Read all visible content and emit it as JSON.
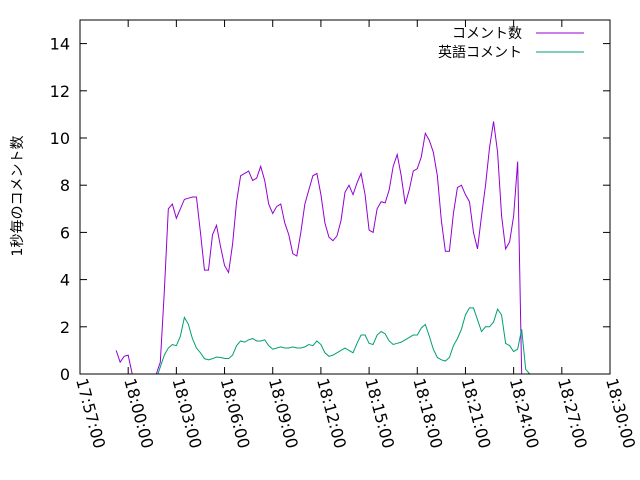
{
  "chart_data": {
    "type": "line",
    "title": "",
    "xlabel": "",
    "ylabel": "1秒毎のコメント数",
    "ylim": [
      0,
      15
    ],
    "yticks": [
      0,
      2,
      4,
      6,
      8,
      10,
      12,
      14
    ],
    "xlim": [
      "17:57:00",
      "18:30:00"
    ],
    "xticks": [
      "17:57:00",
      "18:00:00",
      "18:03:00",
      "18:06:00",
      "18:09:00",
      "18:12:00",
      "18:15:00",
      "18:18:00",
      "18:21:00",
      "18:24:00",
      "18:27:00",
      "18:30:00"
    ],
    "legend_position": "top-right",
    "grid": false,
    "series": [
      {
        "name": "コメント数",
        "color": "#9400d3",
        "points": [
          [
            "17:59:15",
            1.0
          ],
          [
            "17:59:30",
            0.5
          ],
          [
            "17:59:45",
            0.75
          ],
          [
            "18:00:00",
            0.8
          ],
          [
            "18:00:15",
            0.0
          ],
          [
            "18:00:30",
            -0.3
          ],
          [
            "18:01:30",
            -0.3
          ],
          [
            "18:01:45",
            0.0
          ],
          [
            "18:02:00",
            0.5
          ],
          [
            "18:02:15",
            3.5
          ],
          [
            "18:02:30",
            7.0
          ],
          [
            "18:02:45",
            7.2
          ],
          [
            "18:03:00",
            6.6
          ],
          [
            "18:03:15",
            7.0
          ],
          [
            "18:03:30",
            7.4
          ],
          [
            "18:03:45",
            7.45
          ],
          [
            "18:04:00",
            7.5
          ],
          [
            "18:04:15",
            7.5
          ],
          [
            "18:04:30",
            6.0
          ],
          [
            "18:04:45",
            4.4
          ],
          [
            "18:05:00",
            4.4
          ],
          [
            "18:05:15",
            5.9
          ],
          [
            "18:05:30",
            6.3
          ],
          [
            "18:05:45",
            5.4
          ],
          [
            "18:06:00",
            4.6
          ],
          [
            "18:06:15",
            4.3
          ],
          [
            "18:06:30",
            5.5
          ],
          [
            "18:06:45",
            7.3
          ],
          [
            "18:07:00",
            8.4
          ],
          [
            "18:07:15",
            8.5
          ],
          [
            "18:07:30",
            8.6
          ],
          [
            "18:07:45",
            8.2
          ],
          [
            "18:08:00",
            8.3
          ],
          [
            "18:08:15",
            8.8
          ],
          [
            "18:08:30",
            8.2
          ],
          [
            "18:08:45",
            7.2
          ],
          [
            "18:09:00",
            6.8
          ],
          [
            "18:09:15",
            7.1
          ],
          [
            "18:09:30",
            7.2
          ],
          [
            "18:09:45",
            6.4
          ],
          [
            "18:10:00",
            5.9
          ],
          [
            "18:10:15",
            5.1
          ],
          [
            "18:10:30",
            5.0
          ],
          [
            "18:10:45",
            6.0
          ],
          [
            "18:11:00",
            7.2
          ],
          [
            "18:11:15",
            7.8
          ],
          [
            "18:11:30",
            8.4
          ],
          [
            "18:11:45",
            8.5
          ],
          [
            "18:12:00",
            7.6
          ],
          [
            "18:12:15",
            6.4
          ],
          [
            "18:12:30",
            5.8
          ],
          [
            "18:12:45",
            5.65
          ],
          [
            "18:13:00",
            5.85
          ],
          [
            "18:13:15",
            6.5
          ],
          [
            "18:13:30",
            7.7
          ],
          [
            "18:13:45",
            8.0
          ],
          [
            "18:14:00",
            7.6
          ],
          [
            "18:14:15",
            8.1
          ],
          [
            "18:14:30",
            8.5
          ],
          [
            "18:14:45",
            7.6
          ],
          [
            "18:15:00",
            6.1
          ],
          [
            "18:15:15",
            6.0
          ],
          [
            "18:15:30",
            7.0
          ],
          [
            "18:15:45",
            7.3
          ],
          [
            "18:16:00",
            7.25
          ],
          [
            "18:16:15",
            7.8
          ],
          [
            "18:16:30",
            8.8
          ],
          [
            "18:16:45",
            9.3
          ],
          [
            "18:17:00",
            8.4
          ],
          [
            "18:17:15",
            7.2
          ],
          [
            "18:17:30",
            7.8
          ],
          [
            "18:17:45",
            8.6
          ],
          [
            "18:18:00",
            8.7
          ],
          [
            "18:18:15",
            9.2
          ],
          [
            "18:18:30",
            10.2
          ],
          [
            "18:18:45",
            9.9
          ],
          [
            "18:19:00",
            9.4
          ],
          [
            "18:19:15",
            8.4
          ],
          [
            "18:19:30",
            6.5
          ],
          [
            "18:19:45",
            5.2
          ],
          [
            "18:20:00",
            5.2
          ],
          [
            "18:20:15",
            6.8
          ],
          [
            "18:20:30",
            7.9
          ],
          [
            "18:20:45",
            8.0
          ],
          [
            "18:21:00",
            7.6
          ],
          [
            "18:21:15",
            7.3
          ],
          [
            "18:21:30",
            6.0
          ],
          [
            "18:21:45",
            5.3
          ],
          [
            "18:22:00",
            6.7
          ],
          [
            "18:22:15",
            8.0
          ],
          [
            "18:22:30",
            9.6
          ],
          [
            "18:22:45",
            10.7
          ],
          [
            "18:23:00",
            9.4
          ],
          [
            "18:23:15",
            6.7
          ],
          [
            "18:23:30",
            5.3
          ],
          [
            "18:23:45",
            5.6
          ],
          [
            "18:24:00",
            6.7
          ],
          [
            "18:24:15",
            9.0
          ],
          [
            "18:24:30",
            0.0
          ]
        ]
      },
      {
        "name": "英語コメント",
        "color": "#009e73",
        "points": [
          [
            "18:01:45",
            -0.2
          ],
          [
            "18:02:00",
            0.3
          ],
          [
            "18:02:15",
            0.8
          ],
          [
            "18:02:30",
            1.1
          ],
          [
            "18:02:45",
            1.25
          ],
          [
            "18:03:00",
            1.2
          ],
          [
            "18:03:15",
            1.6
          ],
          [
            "18:03:30",
            2.4
          ],
          [
            "18:03:45",
            2.1
          ],
          [
            "18:04:00",
            1.5
          ],
          [
            "18:04:15",
            1.1
          ],
          [
            "18:04:30",
            0.9
          ],
          [
            "18:04:45",
            0.65
          ],
          [
            "18:05:00",
            0.6
          ],
          [
            "18:05:15",
            0.65
          ],
          [
            "18:05:30",
            0.72
          ],
          [
            "18:05:45",
            0.7
          ],
          [
            "18:06:00",
            0.66
          ],
          [
            "18:06:15",
            0.65
          ],
          [
            "18:06:30",
            0.8
          ],
          [
            "18:06:45",
            1.2
          ],
          [
            "18:07:00",
            1.4
          ],
          [
            "18:07:15",
            1.35
          ],
          [
            "18:07:30",
            1.45
          ],
          [
            "18:07:45",
            1.5
          ],
          [
            "18:08:00",
            1.4
          ],
          [
            "18:08:15",
            1.4
          ],
          [
            "18:08:30",
            1.45
          ],
          [
            "18:08:45",
            1.2
          ],
          [
            "18:09:00",
            1.05
          ],
          [
            "18:09:15",
            1.1
          ],
          [
            "18:09:30",
            1.15
          ],
          [
            "18:09:45",
            1.1
          ],
          [
            "18:10:00",
            1.1
          ],
          [
            "18:10:15",
            1.15
          ],
          [
            "18:10:30",
            1.1
          ],
          [
            "18:10:45",
            1.1
          ],
          [
            "18:11:00",
            1.15
          ],
          [
            "18:11:15",
            1.25
          ],
          [
            "18:11:30",
            1.2
          ],
          [
            "18:11:45",
            1.4
          ],
          [
            "18:12:00",
            1.25
          ],
          [
            "18:12:15",
            0.9
          ],
          [
            "18:12:30",
            0.75
          ],
          [
            "18:12:45",
            0.8
          ],
          [
            "18:13:00",
            0.9
          ],
          [
            "18:13:15",
            1.0
          ],
          [
            "18:13:30",
            1.1
          ],
          [
            "18:13:45",
            1.0
          ],
          [
            "18:14:00",
            0.9
          ],
          [
            "18:14:15",
            1.3
          ],
          [
            "18:14:30",
            1.65
          ],
          [
            "18:14:45",
            1.65
          ],
          [
            "18:15:00",
            1.3
          ],
          [
            "18:15:15",
            1.25
          ],
          [
            "18:15:30",
            1.65
          ],
          [
            "18:15:45",
            1.8
          ],
          [
            "18:16:00",
            1.7
          ],
          [
            "18:16:15",
            1.4
          ],
          [
            "18:16:30",
            1.25
          ],
          [
            "18:16:45",
            1.3
          ],
          [
            "18:17:00",
            1.35
          ],
          [
            "18:17:15",
            1.45
          ],
          [
            "18:17:30",
            1.55
          ],
          [
            "18:17:45",
            1.65
          ],
          [
            "18:18:00",
            1.65
          ],
          [
            "18:18:15",
            1.95
          ],
          [
            "18:18:30",
            2.1
          ],
          [
            "18:18:45",
            1.6
          ],
          [
            "18:19:00",
            1.05
          ],
          [
            "18:19:15",
            0.7
          ],
          [
            "18:19:30",
            0.6
          ],
          [
            "18:19:45",
            0.55
          ],
          [
            "18:20:00",
            0.7
          ],
          [
            "18:20:15",
            1.2
          ],
          [
            "18:20:30",
            1.5
          ],
          [
            "18:20:45",
            1.9
          ],
          [
            "18:21:00",
            2.5
          ],
          [
            "18:21:15",
            2.8
          ],
          [
            "18:21:30",
            2.8
          ],
          [
            "18:21:45",
            2.3
          ],
          [
            "18:22:00",
            1.8
          ],
          [
            "18:22:15",
            2.0
          ],
          [
            "18:22:30",
            2.0
          ],
          [
            "18:22:45",
            2.2
          ],
          [
            "18:23:00",
            2.75
          ],
          [
            "18:23:15",
            2.5
          ],
          [
            "18:23:30",
            1.3
          ],
          [
            "18:23:45",
            1.2
          ],
          [
            "18:24:00",
            0.95
          ],
          [
            "18:24:15",
            1.05
          ],
          [
            "18:24:30",
            1.9
          ],
          [
            "18:24:45",
            0.2
          ],
          [
            "18:25:00",
            0.0
          ]
        ]
      }
    ]
  }
}
